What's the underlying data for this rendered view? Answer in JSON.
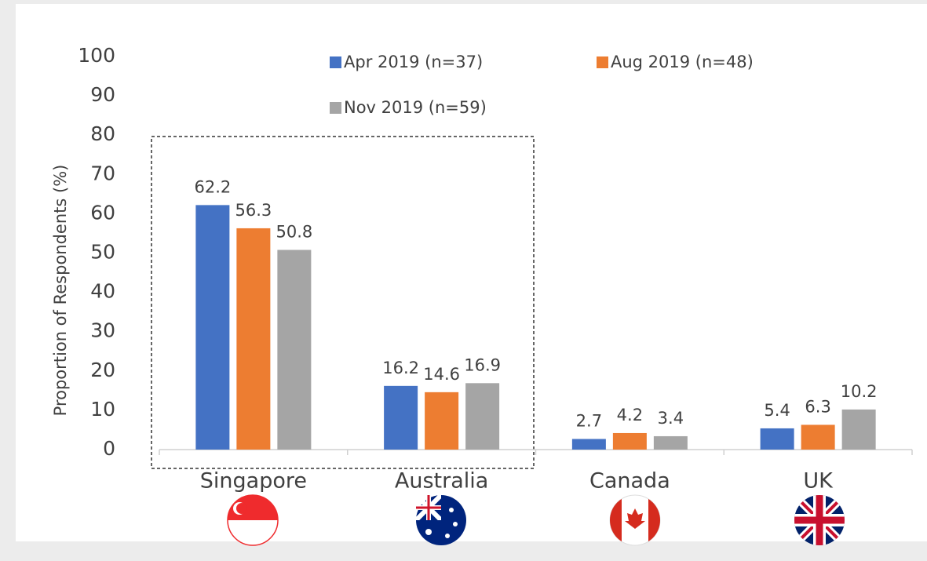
{
  "chart_data": {
    "type": "bar",
    "y_axis_label": "Proportion of Respondents (%)",
    "categories": [
      "Singapore",
      "Australia",
      "Canada",
      "UK"
    ],
    "series": [
      {
        "name": "Apr 2019 (n=37)",
        "color": "#4472c4",
        "values": [
          62.2,
          16.2,
          2.7,
          5.4
        ]
      },
      {
        "name": "Aug 2019 (n=48)",
        "color": "#ed7d31",
        "values": [
          56.3,
          14.6,
          4.2,
          6.3
        ]
      },
      {
        "name": "Nov 2019 (n=59)",
        "color": "#a5a5a5",
        "values": [
          50.8,
          16.9,
          3.4,
          10.2
        ]
      }
    ],
    "ylim": [
      0,
      100
    ],
    "yticks": [
      0,
      10,
      20,
      30,
      40,
      50,
      60,
      70,
      80,
      90,
      100
    ],
    "grid": false
  }
}
